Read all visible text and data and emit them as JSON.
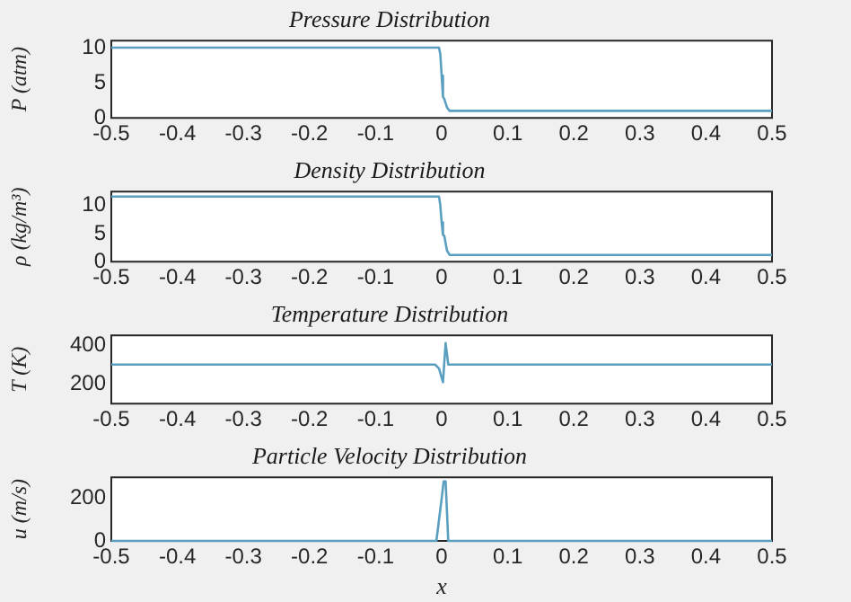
{
  "chart_data": [
    {
      "type": "line",
      "title": "Pressure Distribution",
      "ylabel": "P (atm)",
      "x": [
        -0.5,
        -0.004,
        -0.002,
        0,
        0.002,
        0.004,
        0.008,
        0.012,
        0.5
      ],
      "values": [
        10,
        10,
        9,
        6,
        3,
        2.7,
        1.5,
        1,
        1
      ],
      "color": "#5b9fc0",
      "xlim": [
        -0.5,
        0.5
      ],
      "xticks": [
        -0.5,
        -0.4,
        -0.3,
        -0.2,
        -0.1,
        0,
        0.1,
        0.2,
        0.3,
        0.4,
        0.5
      ],
      "ylim": [
        0,
        11
      ],
      "yticks": [
        0,
        5,
        10
      ]
    },
    {
      "type": "line",
      "title": "Density Distribution",
      "ylabel": "ρ (kg/m³)",
      "x": [
        -0.5,
        -0.004,
        -0.002,
        0,
        0.002,
        0.004,
        0.008,
        0.012,
        0.5
      ],
      "values": [
        11.6,
        11.6,
        10,
        7,
        4.8,
        4.6,
        2,
        1.2,
        1.2
      ],
      "color": "#5b9fc0",
      "xlim": [
        -0.5,
        0.5
      ],
      "xticks": [
        -0.5,
        -0.4,
        -0.3,
        -0.2,
        -0.1,
        0,
        0.1,
        0.2,
        0.3,
        0.4,
        0.5
      ],
      "ylim": [
        0,
        12.5
      ],
      "yticks": [
        0,
        5,
        10
      ]
    },
    {
      "type": "line",
      "title": "Temperature Distribution",
      "ylabel": "T (K)",
      "x": [
        -0.5,
        -0.01,
        -0.004,
        0.002,
        0.006,
        0.01,
        0.5
      ],
      "values": [
        300,
        300,
        280,
        210,
        410,
        300,
        300
      ],
      "color": "#5b9fc0",
      "xlim": [
        -0.5,
        0.5
      ],
      "xticks": [
        -0.5,
        -0.4,
        -0.3,
        -0.2,
        -0.1,
        0,
        0.1,
        0.2,
        0.3,
        0.4,
        0.5
      ],
      "ylim": [
        100,
        450
      ],
      "yticks": [
        200,
        400
      ]
    },
    {
      "type": "line",
      "title": "Particle Velocity Distribution",
      "ylabel": "u (m/s)",
      "xlabel": "x",
      "x": [
        -0.5,
        -0.008,
        0,
        0.003,
        0.006,
        0.01,
        0.5
      ],
      "values": [
        0,
        0,
        200,
        280,
        280,
        0,
        0
      ],
      "color": "#5b9fc0",
      "xlim": [
        -0.5,
        0.5
      ],
      "xticks": [
        -0.5,
        -0.4,
        -0.3,
        -0.2,
        -0.1,
        0,
        0.1,
        0.2,
        0.3,
        0.4,
        0.5
      ],
      "ylim": [
        0,
        300
      ],
      "yticks": [
        0,
        200
      ]
    }
  ]
}
